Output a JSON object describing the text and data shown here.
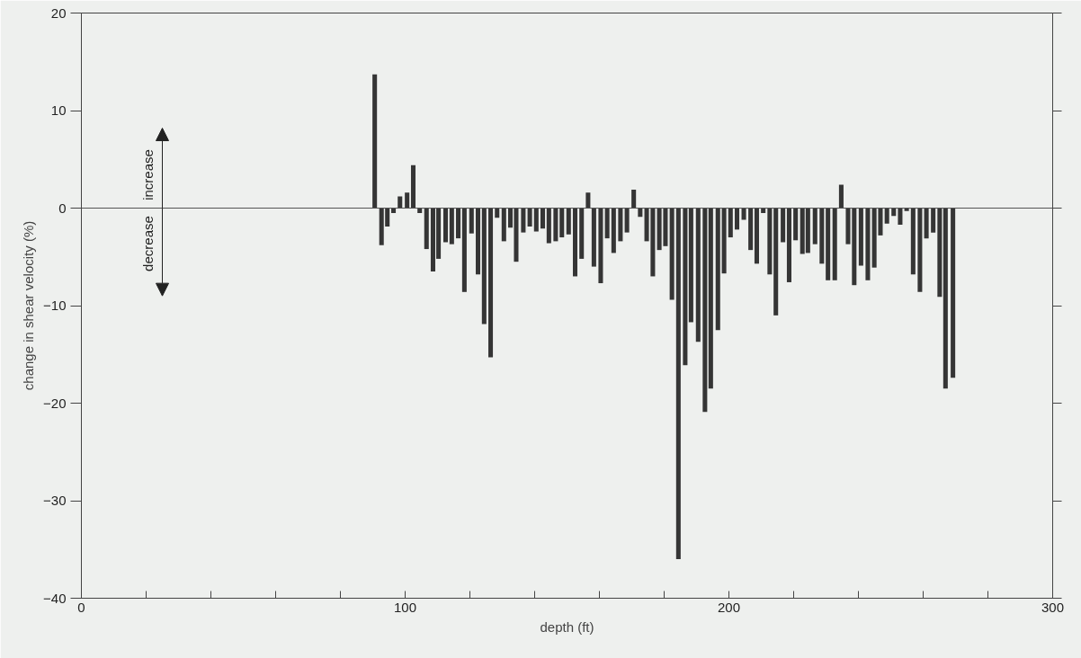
{
  "chart_data": {
    "type": "bar",
    "xlabel": "depth (ft)",
    "ylabel": "change in shear velocity (%)",
    "x": [
      90.6,
      92.7,
      94.5,
      96.4,
      98.4,
      100.6,
      102.5,
      104.5,
      106.6,
      108.6,
      110.3,
      112.5,
      114.4,
      116.4,
      118.3,
      120.5,
      122.5,
      124.4,
      126.4,
      128.4,
      130.5,
      132.5,
      134.3,
      136.5,
      138.5,
      140.5,
      142.5,
      144.4,
      146.5,
      148.4,
      150.5,
      152.5,
      154.5,
      156.5,
      158.3,
      160.4,
      162.4,
      164.4,
      166.5,
      168.5,
      170.6,
      172.6,
      174.6,
      176.5,
      178.5,
      180.4,
      182.4,
      184.4,
      186.5,
      188.3,
      190.5,
      192.6,
      194.4,
      196.6,
      198.5,
      200.5,
      202.5,
      204.6,
      206.7,
      208.6,
      210.6,
      212.6,
      214.5,
      216.7,
      218.6,
      220.6,
      222.7,
      224.4,
      226.6,
      228.7,
      230.6,
      232.7,
      234.7,
      236.8,
      238.7,
      240.8,
      242.9,
      244.9,
      246.8,
      248.8,
      250.9,
      252.9,
      254.9,
      256.9,
      259.0,
      261.0,
      263.1,
      265.1,
      266.9,
      269.2
    ],
    "values": [
      13.7,
      -3.8,
      -1.9,
      -0.5,
      1.2,
      1.6,
      4.4,
      -0.5,
      -4.2,
      -6.5,
      -5.2,
      -3.5,
      -3.7,
      -3.1,
      -8.6,
      -2.6,
      -6.8,
      -11.9,
      -15.3,
      -1.0,
      -3.4,
      -2.0,
      -5.5,
      -2.5,
      -1.9,
      -2.4,
      -2.1,
      -3.6,
      -3.4,
      -3.0,
      -2.7,
      -7.0,
      -5.2,
      1.6,
      -6.0,
      -7.7,
      -3.1,
      -4.6,
      -3.4,
      -2.5,
      1.9,
      -0.9,
      -3.4,
      -7.0,
      -4.3,
      -3.9,
      -9.4,
      -36.0,
      -16.1,
      -11.7,
      -13.7,
      -20.9,
      -18.5,
      -12.5,
      -6.7,
      -3.0,
      -2.2,
      -1.2,
      -4.3,
      -5.7,
      -0.5,
      -6.8,
      -11.0,
      -3.5,
      -7.6,
      -3.3,
      -4.7,
      -4.6,
      -3.7,
      -5.7,
      -7.4,
      -7.4,
      2.4,
      -3.7,
      -7.9,
      -5.9,
      -7.4,
      -6.1,
      -2.8,
      -1.6,
      -0.8,
      -1.7,
      -0.3,
      -6.8,
      -8.6,
      -3.1,
      -2.5,
      -9.1,
      -18.5,
      -17.4
    ],
    "color": "#353535",
    "xlim": [
      0,
      300
    ],
    "xticks": [
      0,
      {
        "value": 20,
        "label": null
      },
      {
        "value": 40,
        "label": null
      },
      {
        "value": 60,
        "label": null
      },
      {
        "value": 80,
        "label": null
      },
      100,
      {
        "value": 120,
        "label": null
      },
      {
        "value": 140,
        "label": null
      },
      {
        "value": 160,
        "label": null
      },
      {
        "value": 180,
        "label": null
      },
      200,
      {
        "value": 220,
        "label": null
      },
      {
        "value": 240,
        "label": null
      },
      {
        "value": 260,
        "label": null
      },
      {
        "value": 280,
        "label": null
      },
      300
    ],
    "ylim": [
      -40,
      20
    ],
    "yticks": [
      -40,
      -30,
      -20,
      -10,
      0,
      10,
      20
    ],
    "ref_lines": [
      {
        "axis": "y",
        "value": 0,
        "label": null,
        "color": "#555555"
      }
    ],
    "annotations": [
      "increase",
      "decrease"
    ],
    "grid": false
  }
}
